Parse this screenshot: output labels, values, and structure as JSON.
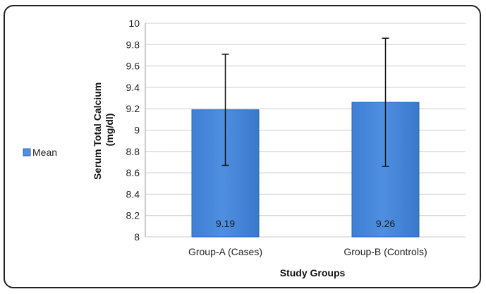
{
  "chart_data": {
    "type": "bar",
    "categories": [
      "Group-A (Cases)",
      "Group-B (Controls)"
    ],
    "series": [
      {
        "name": "Mean",
        "values": [
          9.19,
          9.26
        ],
        "error_low": [
          8.67,
          8.66
        ],
        "error_high": [
          9.71,
          9.86
        ]
      }
    ],
    "data_labels": [
      "9.19",
      "9.26"
    ],
    "xlabel": "Study Groups",
    "ylabel": "Serum Total Calcium (mg/dl)",
    "ylabel_lines": [
      "Serum Total Calcium",
      "(mg/dl)"
    ],
    "ylim": [
      8,
      10
    ],
    "yticks": [
      "8",
      "8.2",
      "8.4",
      "8.6",
      "8.8",
      "9",
      "9.2",
      "9.4",
      "9.6",
      "9.8",
      "10"
    ],
    "grid": true,
    "legend": "left",
    "colors": {
      "bar": "#4f8fe0",
      "bar_border": "#2c66b0",
      "grid": "#cccccc",
      "error": "#111111"
    }
  }
}
